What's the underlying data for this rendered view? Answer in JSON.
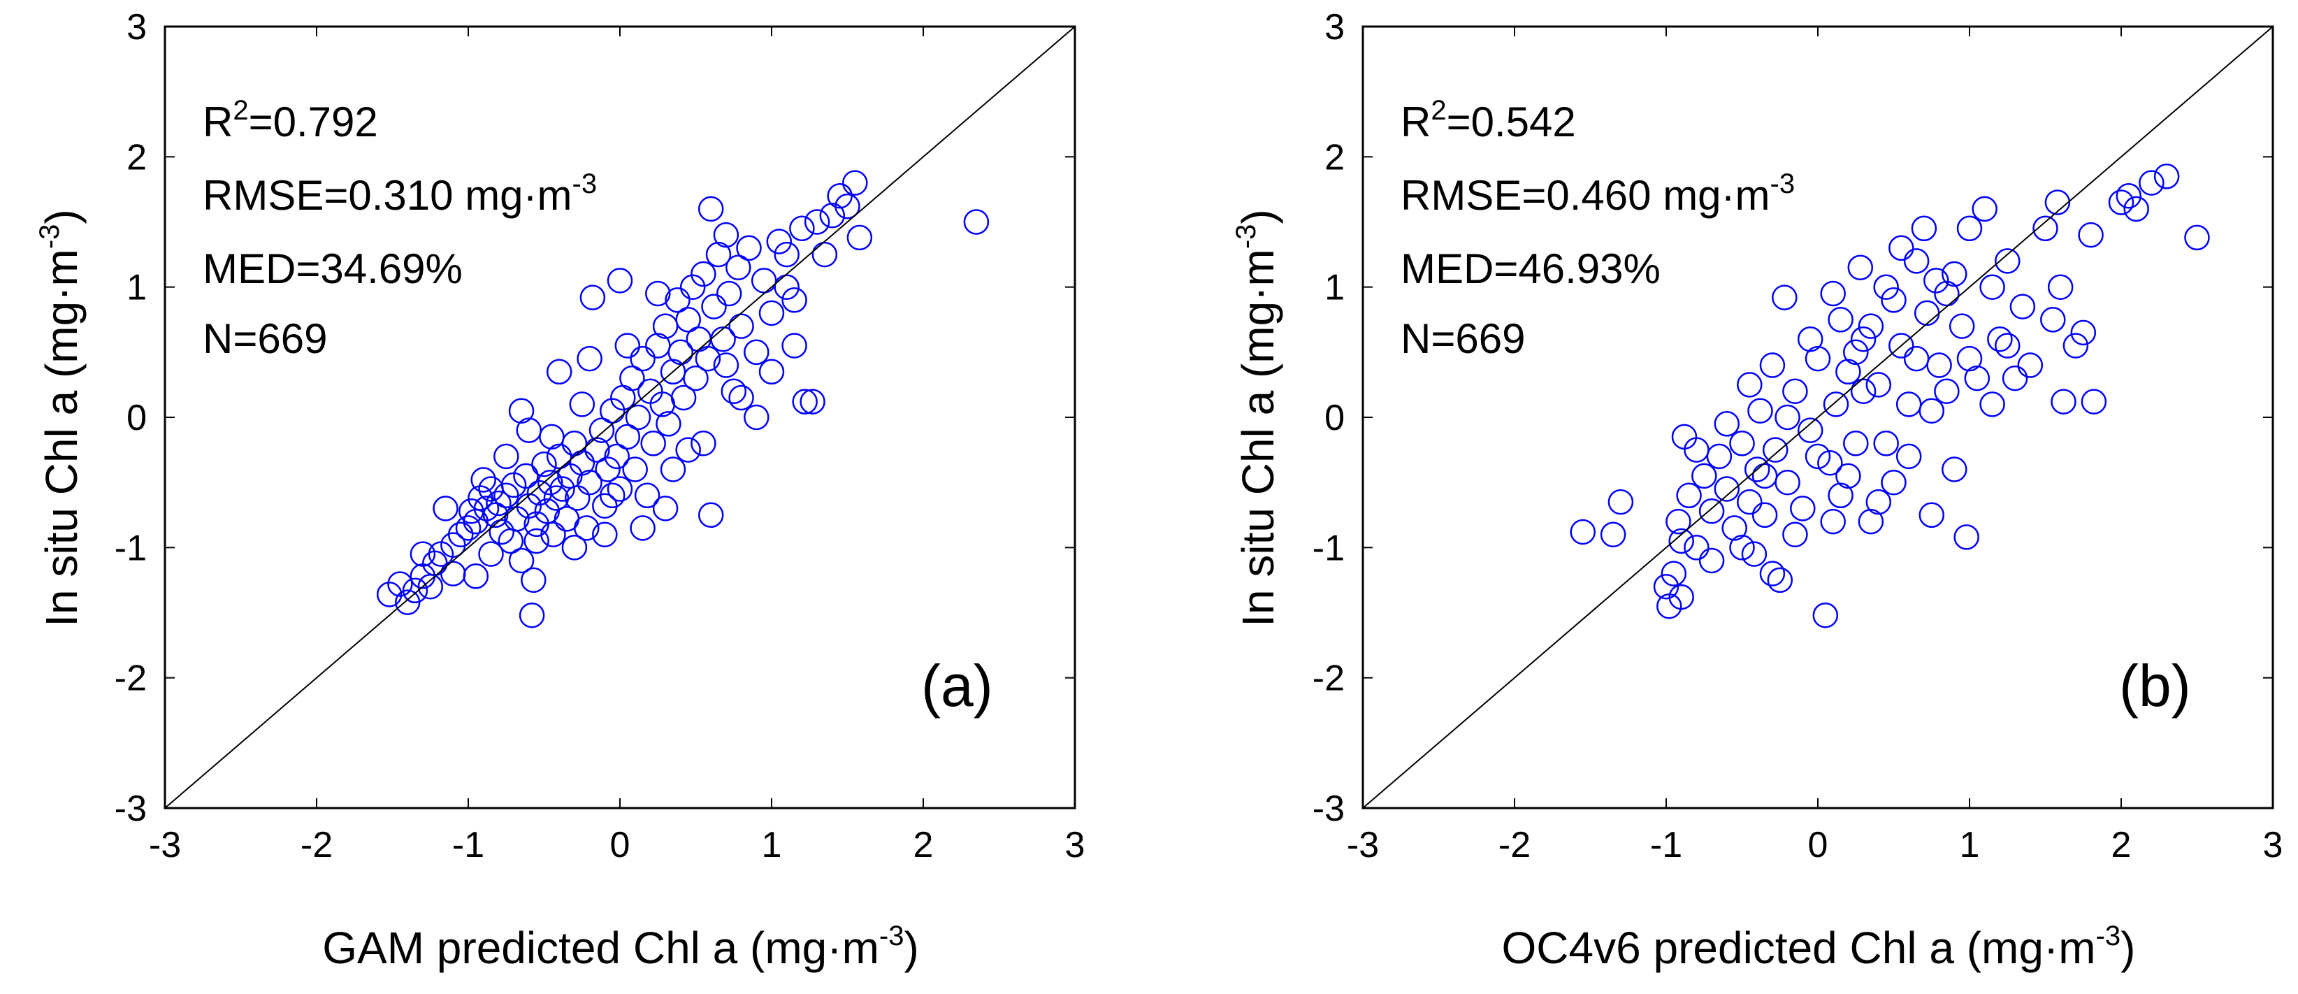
{
  "chart_data": [
    {
      "type": "scatter",
      "panel_label": "(a)",
      "xlabel": {
        "text": "GAM predicted Chl a (mg·m",
        "sup": "-3",
        "close": ")"
      },
      "ylabel": {
        "text": "In situ Chl a (mg·m",
        "sup": "-3",
        "close": ")"
      },
      "xlim": [
        -3,
        3
      ],
      "ylim": [
        -3,
        3
      ],
      "xticks": [
        "-3",
        "-2",
        "-1",
        "0",
        "1",
        "2",
        "3"
      ],
      "yticks": [
        "-3",
        "-2",
        "-1",
        "0",
        "1",
        "2",
        "3"
      ],
      "reference_line": "1:1",
      "marker": {
        "shape": "open-circle",
        "color": "#0000ff"
      },
      "annotations": {
        "r2_prefix": "R",
        "r2_sup": "2",
        "r2_value": "=0.792",
        "rmse_text": "RMSE=0.310 mg·m",
        "rmse_sup": "-3",
        "med": "MED=34.69%",
        "n": "N=669"
      },
      "points": [
        [
          -1.52,
          -1.36
        ],
        [
          -1.45,
          -1.28
        ],
        [
          -1.4,
          -1.42
        ],
        [
          -1.35,
          -1.33
        ],
        [
          -1.3,
          -1.22
        ],
        [
          -1.25,
          -1.3
        ],
        [
          -1.22,
          -1.12
        ],
        [
          -1.18,
          -1.05
        ],
        [
          -1.1,
          -0.98
        ],
        [
          -1.05,
          -0.9
        ],
        [
          -1.0,
          -0.85
        ],
        [
          -0.98,
          -0.72
        ],
        [
          -0.95,
          -0.8
        ],
        [
          -0.92,
          -0.62
        ],
        [
          -0.9,
          -0.48
        ],
        [
          -0.88,
          -0.7
        ],
        [
          -0.85,
          -0.55
        ],
        [
          -0.82,
          -0.75
        ],
        [
          -0.8,
          -0.66
        ],
        [
          -0.78,
          -0.88
        ],
        [
          -0.75,
          -0.6
        ],
        [
          -0.72,
          -0.95
        ],
        [
          -0.7,
          -0.52
        ],
        [
          -0.68,
          -0.78
        ],
        [
          -0.65,
          -1.1
        ],
        [
          -0.62,
          -0.45
        ],
        [
          -0.6,
          -0.68
        ],
        [
          -0.58,
          -1.52
        ],
        [
          -0.57,
          -1.25
        ],
        [
          -0.55,
          -0.82
        ],
        [
          -0.53,
          -0.58
        ],
        [
          -0.5,
          -0.36
        ],
        [
          -0.48,
          -0.72
        ],
        [
          -0.46,
          -0.5
        ],
        [
          -0.44,
          -0.9
        ],
        [
          -0.42,
          -0.62
        ],
        [
          -0.4,
          -0.3
        ],
        [
          -0.38,
          -0.55
        ],
        [
          -0.35,
          -0.78
        ],
        [
          -0.33,
          -0.45
        ],
        [
          -0.3,
          -0.2
        ],
        [
          -0.28,
          -0.62
        ],
        [
          -0.25,
          -0.35
        ],
        [
          -0.22,
          -0.85
        ],
        [
          -0.2,
          -0.5
        ],
        [
          -0.18,
          0.92
        ],
        [
          -0.15,
          -0.25
        ],
        [
          -0.12,
          -0.1
        ],
        [
          -0.1,
          -0.68
        ],
        [
          -0.08,
          -0.4
        ],
        [
          -0.05,
          0.05
        ],
        [
          -0.02,
          -0.3
        ],
        [
          0.0,
          -0.55
        ],
        [
          0.02,
          0.15
        ],
        [
          0.05,
          -0.15
        ],
        [
          0.08,
          0.3
        ],
        [
          0.1,
          -0.4
        ],
        [
          0.12,
          0.0
        ],
        [
          0.15,
          0.45
        ],
        [
          0.18,
          -0.6
        ],
        [
          0.2,
          0.2
        ],
        [
          0.22,
          -0.2
        ],
        [
          0.25,
          0.55
        ],
        [
          0.28,
          0.1
        ],
        [
          0.3,
          0.7
        ],
        [
          0.32,
          -0.05
        ],
        [
          0.35,
          0.35
        ],
        [
          0.38,
          0.9
        ],
        [
          0.4,
          0.5
        ],
        [
          0.42,
          0.15
        ],
        [
          0.45,
          0.75
        ],
        [
          0.48,
          1.0
        ],
        [
          0.5,
          0.3
        ],
        [
          0.52,
          0.6
        ],
        [
          0.55,
          1.1
        ],
        [
          0.58,
          0.45
        ],
        [
          0.6,
          -0.75
        ],
        [
          0.62,
          0.85
        ],
        [
          0.65,
          1.25
        ],
        [
          0.68,
          0.6
        ],
        [
          0.7,
          1.4
        ],
        [
          0.72,
          0.95
        ],
        [
          0.75,
          0.2
        ],
        [
          0.78,
          1.15
        ],
        [
          0.8,
          0.7
        ],
        [
          0.85,
          1.3
        ],
        [
          0.9,
          0.5
        ],
        [
          0.95,
          1.05
        ],
        [
          1.0,
          0.8
        ],
        [
          1.05,
          1.35
        ],
        [
          1.1,
          1.0
        ],
        [
          1.15,
          0.55
        ],
        [
          1.2,
          1.45
        ],
        [
          1.22,
          0.12
        ],
        [
          1.27,
          0.12
        ],
        [
          1.3,
          1.5
        ],
        [
          1.35,
          1.25
        ],
        [
          1.4,
          1.55
        ],
        [
          1.45,
          1.7
        ],
        [
          1.5,
          1.62
        ],
        [
          1.55,
          1.8
        ],
        [
          1.58,
          1.38
        ],
        [
          2.35,
          1.5
        ],
        [
          -0.95,
          -1.22
        ],
        [
          -1.15,
          -0.7
        ],
        [
          -0.6,
          -0.1
        ],
        [
          -0.4,
          0.35
        ],
        [
          -0.25,
          0.1
        ],
        [
          0.05,
          0.55
        ],
        [
          0.15,
          -0.85
        ],
        [
          0.35,
          -0.4
        ],
        [
          0.55,
          -0.2
        ],
        [
          0.8,
          0.15
        ],
        [
          1.0,
          0.35
        ],
        [
          -0.75,
          -0.3
        ],
        [
          -0.55,
          -0.95
        ],
        [
          -0.3,
          -1.0
        ],
        [
          -0.1,
          -0.9
        ],
        [
          0.3,
          -0.7
        ],
        [
          -1.3,
          -1.05
        ],
        [
          -1.1,
          -1.2
        ],
        [
          -0.65,
          0.05
        ],
        [
          -0.2,
          0.45
        ],
        [
          0.0,
          1.05
        ],
        [
          0.6,
          1.6
        ],
        [
          0.9,
          0.0
        ],
        [
          1.1,
          1.25
        ],
        [
          0.45,
          -0.25
        ],
        [
          -0.45,
          -0.15
        ],
        [
          -0.85,
          -1.05
        ],
        [
          0.25,
          0.95
        ],
        [
          0.7,
          0.4
        ],
        [
          1.15,
          0.9
        ],
        [
          -0.05,
          -0.6
        ]
      ]
    },
    {
      "type": "scatter",
      "panel_label": "(b)",
      "xlabel": {
        "text": "OC4v6 predicted Chl a (mg·m",
        "sup": "-3",
        "close": ")"
      },
      "ylabel": {
        "text": "In situ Chl a (mg·m",
        "sup": "-3",
        "close": ")"
      },
      "xlim": [
        -3,
        3
      ],
      "ylim": [
        -3,
        3
      ],
      "xticks": [
        "-3",
        "-2",
        "-1",
        "0",
        "1",
        "2",
        "3"
      ],
      "yticks": [
        "-3",
        "-2",
        "-1",
        "0",
        "1",
        "2",
        "3"
      ],
      "reference_line": "1:1",
      "marker": {
        "shape": "open-circle",
        "color": "#0000ff"
      },
      "annotations": {
        "r2_prefix": "R",
        "r2_sup": "2",
        "r2_value": "=0.542",
        "rmse_text": "RMSE=0.460 mg·m",
        "rmse_sup": "-3",
        "med": "MED=46.93%",
        "n": "N=669"
      },
      "points": [
        [
          -1.55,
          -0.88
        ],
        [
          -1.35,
          -0.9
        ],
        [
          -1.3,
          -0.65
        ],
        [
          -1.0,
          -1.3
        ],
        [
          -0.98,
          -1.45
        ],
        [
          -0.95,
          -1.2
        ],
        [
          -0.92,
          -0.8
        ],
        [
          -0.9,
          -1.38
        ],
        [
          -0.88,
          -0.15
        ],
        [
          -0.85,
          -0.6
        ],
        [
          -0.8,
          -1.0
        ],
        [
          -0.75,
          -0.45
        ],
        [
          -0.7,
          -0.72
        ],
        [
          -0.65,
          -0.3
        ],
        [
          -0.6,
          -0.55
        ],
        [
          -0.55,
          -0.85
        ],
        [
          -0.5,
          -0.2
        ],
        [
          -0.45,
          -0.65
        ],
        [
          -0.42,
          -1.05
        ],
        [
          -0.4,
          -0.4
        ],
        [
          -0.38,
          0.05
        ],
        [
          -0.35,
          -0.75
        ],
        [
          -0.3,
          -1.2
        ],
        [
          -0.28,
          -0.25
        ],
        [
          -0.25,
          -1.25
        ],
        [
          -0.22,
          0.92
        ],
        [
          -0.2,
          -0.5
        ],
        [
          -0.15,
          0.2
        ],
        [
          -0.1,
          -0.7
        ],
        [
          -0.05,
          -0.1
        ],
        [
          0.0,
          0.45
        ],
        [
          0.05,
          -1.52
        ],
        [
          0.08,
          -0.35
        ],
        [
          0.1,
          0.95
        ],
        [
          0.12,
          0.1
        ],
        [
          0.15,
          -0.6
        ],
        [
          0.2,
          0.35
        ],
        [
          0.25,
          -0.2
        ],
        [
          0.28,
          1.15
        ],
        [
          0.3,
          0.6
        ],
        [
          0.35,
          -0.8
        ],
        [
          0.4,
          0.25
        ],
        [
          0.45,
          1.0
        ],
        [
          0.5,
          -0.5
        ],
        [
          0.55,
          0.55
        ],
        [
          0.6,
          0.1
        ],
        [
          0.65,
          1.2
        ],
        [
          0.7,
          1.45
        ],
        [
          0.72,
          0.8
        ],
        [
          0.75,
          -0.75
        ],
        [
          0.78,
          1.05
        ],
        [
          0.8,
          0.4
        ],
        [
          0.85,
          0.95
        ],
        [
          0.9,
          -0.4
        ],
        [
          0.95,
          0.7
        ],
        [
          0.98,
          -0.92
        ],
        [
          1.0,
          1.45
        ],
        [
          1.05,
          0.3
        ],
        [
          1.1,
          1.6
        ],
        [
          1.15,
          1.0
        ],
        [
          1.2,
          0.6
        ],
        [
          1.25,
          1.2
        ],
        [
          1.3,
          0.3
        ],
        [
          1.35,
          0.85
        ],
        [
          1.5,
          1.45
        ],
        [
          1.55,
          0.75
        ],
        [
          1.58,
          1.65
        ],
        [
          1.6,
          1.0
        ],
        [
          1.62,
          0.12
        ],
        [
          1.7,
          0.55
        ],
        [
          1.75,
          0.65
        ],
        [
          1.8,
          1.4
        ],
        [
          1.82,
          0.12
        ],
        [
          2.0,
          1.65
        ],
        [
          2.05,
          1.7
        ],
        [
          2.1,
          1.6
        ],
        [
          2.2,
          1.8
        ],
        [
          2.3,
          1.85
        ],
        [
          2.5,
          1.38
        ],
        [
          -0.6,
          -0.05
        ],
        [
          -0.3,
          0.4
        ],
        [
          0.1,
          -0.8
        ],
        [
          0.35,
          0.7
        ],
        [
          0.6,
          -0.3
        ],
        [
          0.85,
          0.2
        ],
        [
          -0.8,
          -0.25
        ],
        [
          -0.5,
          -1.0
        ],
        [
          0.2,
          -0.45
        ],
        [
          0.45,
          -0.2
        ],
        [
          1.0,
          0.45
        ],
        [
          -0.7,
          -1.1
        ],
        [
          -0.2,
          0.0
        ],
        [
          0.15,
          0.75
        ],
        [
          0.55,
          1.3
        ],
        [
          0.75,
          0.05
        ],
        [
          1.15,
          0.1
        ],
        [
          -0.9,
          -0.95
        ],
        [
          -0.15,
          -0.9
        ],
        [
          0.4,
          -0.65
        ],
        [
          0.65,
          0.45
        ],
        [
          1.25,
          0.55
        ],
        [
          -0.45,
          0.25
        ],
        [
          -0.05,
          0.6
        ],
        [
          0.3,
          0.2
        ],
        [
          0.9,
          1.1
        ],
        [
          1.4,
          0.4
        ],
        [
          0.0,
          -0.3
        ],
        [
          0.5,
          0.9
        ],
        [
          -0.35,
          -0.45
        ],
        [
          0.25,
          0.5
        ]
      ]
    }
  ]
}
